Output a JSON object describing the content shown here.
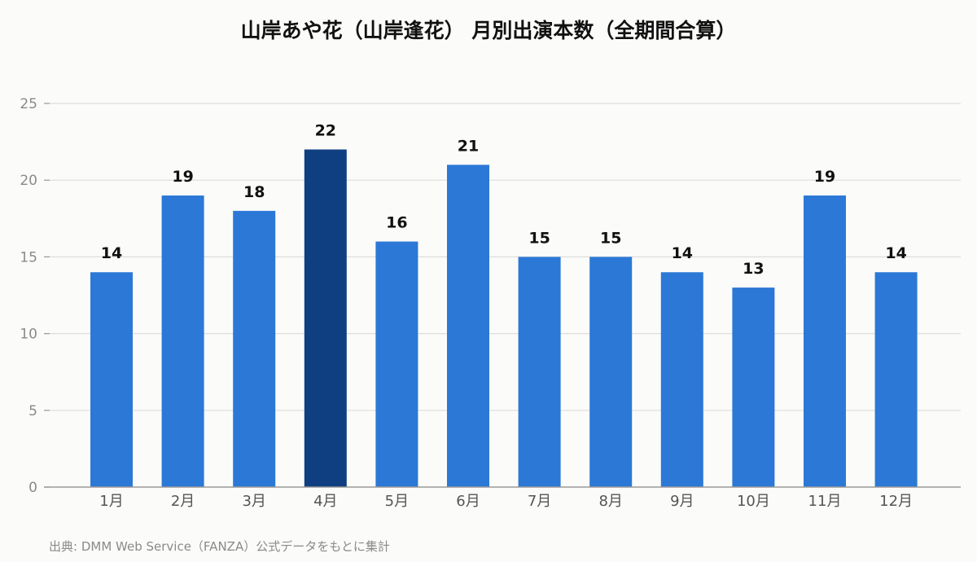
{
  "chart_data": {
    "type": "bar",
    "title": "山岸あや花（山岸逢花） 月別出演本数（全期間合算）",
    "categories": [
      "1月",
      "2月",
      "3月",
      "4月",
      "5月",
      "6月",
      "7月",
      "8月",
      "9月",
      "10月",
      "11月",
      "12月"
    ],
    "values": [
      14,
      19,
      18,
      22,
      16,
      21,
      15,
      15,
      14,
      13,
      19,
      14
    ],
    "ylim": [
      0,
      25
    ],
    "yticks": [
      0,
      5,
      10,
      15,
      20,
      25
    ],
    "grid": true,
    "highlight_index": 3,
    "colors": {
      "bar": "#2b78d6",
      "highlight": "#0f3f80",
      "grid": "#dddddd",
      "axis": "#999999"
    }
  },
  "source": "出典: DMM Web Service（FANZA）公式データをもとに集計"
}
